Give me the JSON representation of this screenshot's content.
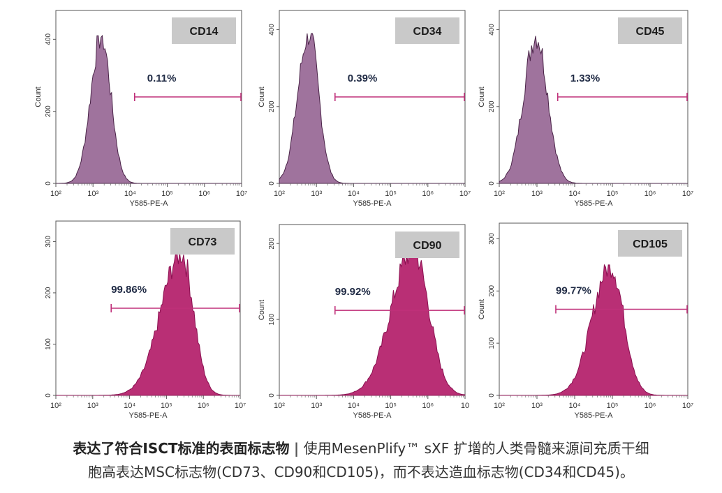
{
  "chart_data": [
    {
      "type": "histogram",
      "marker": "CD14",
      "percent_label": "0.11%",
      "color": "#8E5A8C",
      "peak_log10": 3.22,
      "peak_count": 410,
      "width_left": 0.28,
      "width_right": 0.26,
      "y_ticks": [
        0,
        200,
        400
      ],
      "ylim": [
        0,
        480
      ],
      "gate_log10": [
        4.12,
        7.0
      ],
      "gate_y": 240,
      "ylabel": "Count",
      "xlabel": "Y585-PE-A",
      "x_ticks": [
        "10²",
        "10³",
        "10⁴",
        "10⁵",
        "10⁶",
        "10⁷"
      ],
      "xlim_log10": [
        2,
        7
      ]
    },
    {
      "type": "histogram",
      "marker": "CD34",
      "percent_label": "0.39%",
      "color": "#8E5A8C",
      "peak_log10": 2.8,
      "peak_count": 390,
      "width_left": 0.3,
      "width_right": 0.26,
      "y_ticks": [
        0,
        200,
        400
      ],
      "ylim": [
        0,
        450
      ],
      "gate_log10": [
        3.5,
        7.0
      ],
      "gate_y": 225,
      "ylabel": "Count",
      "xlabel": "Y585-PE-A",
      "x_ticks": [
        "10²",
        "10³",
        "10⁴",
        "10⁵",
        "10⁶",
        "10⁷"
      ],
      "xlim_log10": [
        2,
        7
      ]
    },
    {
      "type": "histogram",
      "marker": "CD45",
      "percent_label": "1.33%",
      "color": "#8E5A8C",
      "peak_log10": 2.98,
      "peak_count": 385,
      "width_left": 0.33,
      "width_right": 0.3,
      "y_ticks": [
        0,
        200,
        400
      ],
      "ylim": [
        0,
        450
      ],
      "gate_log10": [
        3.55,
        7.0
      ],
      "gate_y": 225,
      "ylabel": "Count",
      "xlabel": "Y585-PE-A",
      "x_ticks": [
        "10²",
        "10³",
        "10⁴",
        "10⁵",
        "10⁶",
        "10⁷"
      ],
      "xlim_log10": [
        2,
        7
      ]
    },
    {
      "type": "histogram",
      "marker": "CD73",
      "percent_label": "99.86%",
      "color": "#B5246E",
      "peak_log10": 5.4,
      "peak_count": 278,
      "width_left": 0.55,
      "width_right": 0.33,
      "y_ticks": [
        0,
        100,
        200,
        300
      ],
      "ylim": [
        0,
        340
      ],
      "gate_log10": [
        3.5,
        7.0
      ],
      "gate_y": 170,
      "ylabel": "",
      "xlabel": "Y585-PE-A",
      "x_ticks": [
        "10²",
        "10³",
        "10⁴",
        "10⁵",
        "10⁶",
        "10⁷"
      ],
      "xlim_log10": [
        2,
        7
      ]
    },
    {
      "type": "histogram",
      "marker": "CD90",
      "percent_label": "99.92%",
      "color": "#B5246E",
      "peak_log10": 5.6,
      "peak_count": 192,
      "width_left": 0.58,
      "width_right": 0.42,
      "y_ticks": [
        0,
        100,
        200
      ],
      "ylim": [
        0,
        225
      ],
      "gate_log10": [
        3.5,
        7.0
      ],
      "gate_y": 112,
      "ylabel": "Count",
      "xlabel": "Y585-PE-A",
      "x_ticks": [
        "10²",
        "10³",
        "10⁴",
        "10⁵",
        "10⁶",
        "10"
      ],
      "xlim_log10": [
        2,
        7
      ]
    },
    {
      "type": "histogram",
      "marker": "CD105",
      "percent_label": "99.77%",
      "color": "#B5246E",
      "peak_log10": 4.95,
      "peak_count": 250,
      "width_left": 0.48,
      "width_right": 0.35,
      "y_ticks": [
        0,
        100,
        200,
        300
      ],
      "ylim": [
        0,
        330
      ],
      "gate_log10": [
        3.5,
        7.0
      ],
      "gate_y": 165,
      "ylabel": "Count",
      "xlabel": "Y585-PE-A",
      "x_ticks": [
        "10²",
        "10³",
        "10⁴",
        "10⁵",
        "10⁶",
        "10⁷"
      ],
      "xlim_log10": [
        2,
        7
      ]
    }
  ],
  "caption": {
    "bold": "表达了符合ISCT标准的表面标志物",
    "separator": "|",
    "line1": "使用MesenPlify™ sXF 扩增的人类骨髓来源间充质干细",
    "line2": "胞高表达MSC标志物(CD73、CD90和CD105)，而不表达造血标志物(CD34和CD45)。"
  }
}
